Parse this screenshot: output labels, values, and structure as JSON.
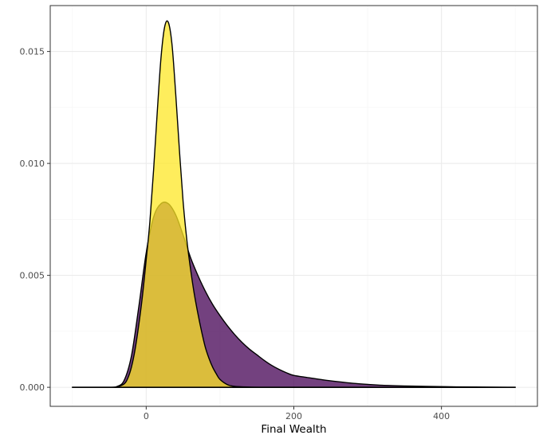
{
  "chart_data": {
    "type": "area",
    "xlabel": "Final Wealth",
    "ylabel": "",
    "xlim": [
      -130,
      530
    ],
    "ylim": [
      -0.00085,
      0.01705
    ],
    "x_ticks": [
      0,
      200,
      400
    ],
    "x_tick_labels": [
      "0",
      "200",
      "400"
    ],
    "y_ticks": [
      0.0,
      0.005,
      0.01,
      0.015
    ],
    "y_tick_labels": [
      "0.000",
      "0.005",
      "0.010",
      "0.015"
    ],
    "grid": true,
    "legend": "none",
    "series": [
      {
        "color": "#440154",
        "opacity": 0.75,
        "x": [
          -100,
          -50,
          -40,
          -30,
          -20,
          -10,
          0,
          10,
          20,
          30,
          40,
          50,
          60,
          70,
          80,
          90,
          100,
          110,
          120,
          130,
          140,
          150,
          160,
          170,
          180,
          190,
          200,
          220,
          240,
          260,
          280,
          300,
          320,
          350,
          380,
          420,
          460,
          500
        ],
        "y": [
          0,
          0,
          3e-05,
          0.0003,
          0.0014,
          0.0036,
          0.006,
          0.0076,
          0.0082,
          0.0082,
          0.0077,
          0.0068,
          0.0058,
          0.005,
          0.0043,
          0.0037,
          0.0032,
          0.00275,
          0.00235,
          0.002,
          0.0017,
          0.00145,
          0.0012,
          0.00098,
          0.0008,
          0.00065,
          0.00053,
          0.00043,
          0.00033,
          0.00025,
          0.00018,
          0.00013,
          9e-05,
          6e-05,
          4e-05,
          2e-05,
          1e-05,
          0
        ]
      },
      {
        "color": "#FDE725",
        "opacity": 0.75,
        "x": [
          -100,
          -50,
          -40,
          -30,
          -25,
          -20,
          -15,
          -10,
          -5,
          0,
          5,
          10,
          15,
          20,
          25,
          30,
          35,
          40,
          45,
          50,
          55,
          60,
          65,
          70,
          75,
          80,
          85,
          90,
          95,
          100,
          110,
          120,
          140,
          160,
          200,
          300,
          500
        ],
        "y": [
          0,
          0,
          2e-05,
          0.00015,
          0.0004,
          0.0009,
          0.0017,
          0.0028,
          0.0041,
          0.0057,
          0.0074,
          0.0097,
          0.0123,
          0.0147,
          0.0161,
          0.0163,
          0.0153,
          0.0131,
          0.0106,
          0.0083,
          0.0066,
          0.0053,
          0.0042,
          0.0033,
          0.0025,
          0.0018,
          0.0013,
          0.0009,
          0.0006,
          0.00035,
          0.00012,
          4e-05,
          1e-05,
          0,
          0,
          0,
          0
        ]
      }
    ]
  }
}
